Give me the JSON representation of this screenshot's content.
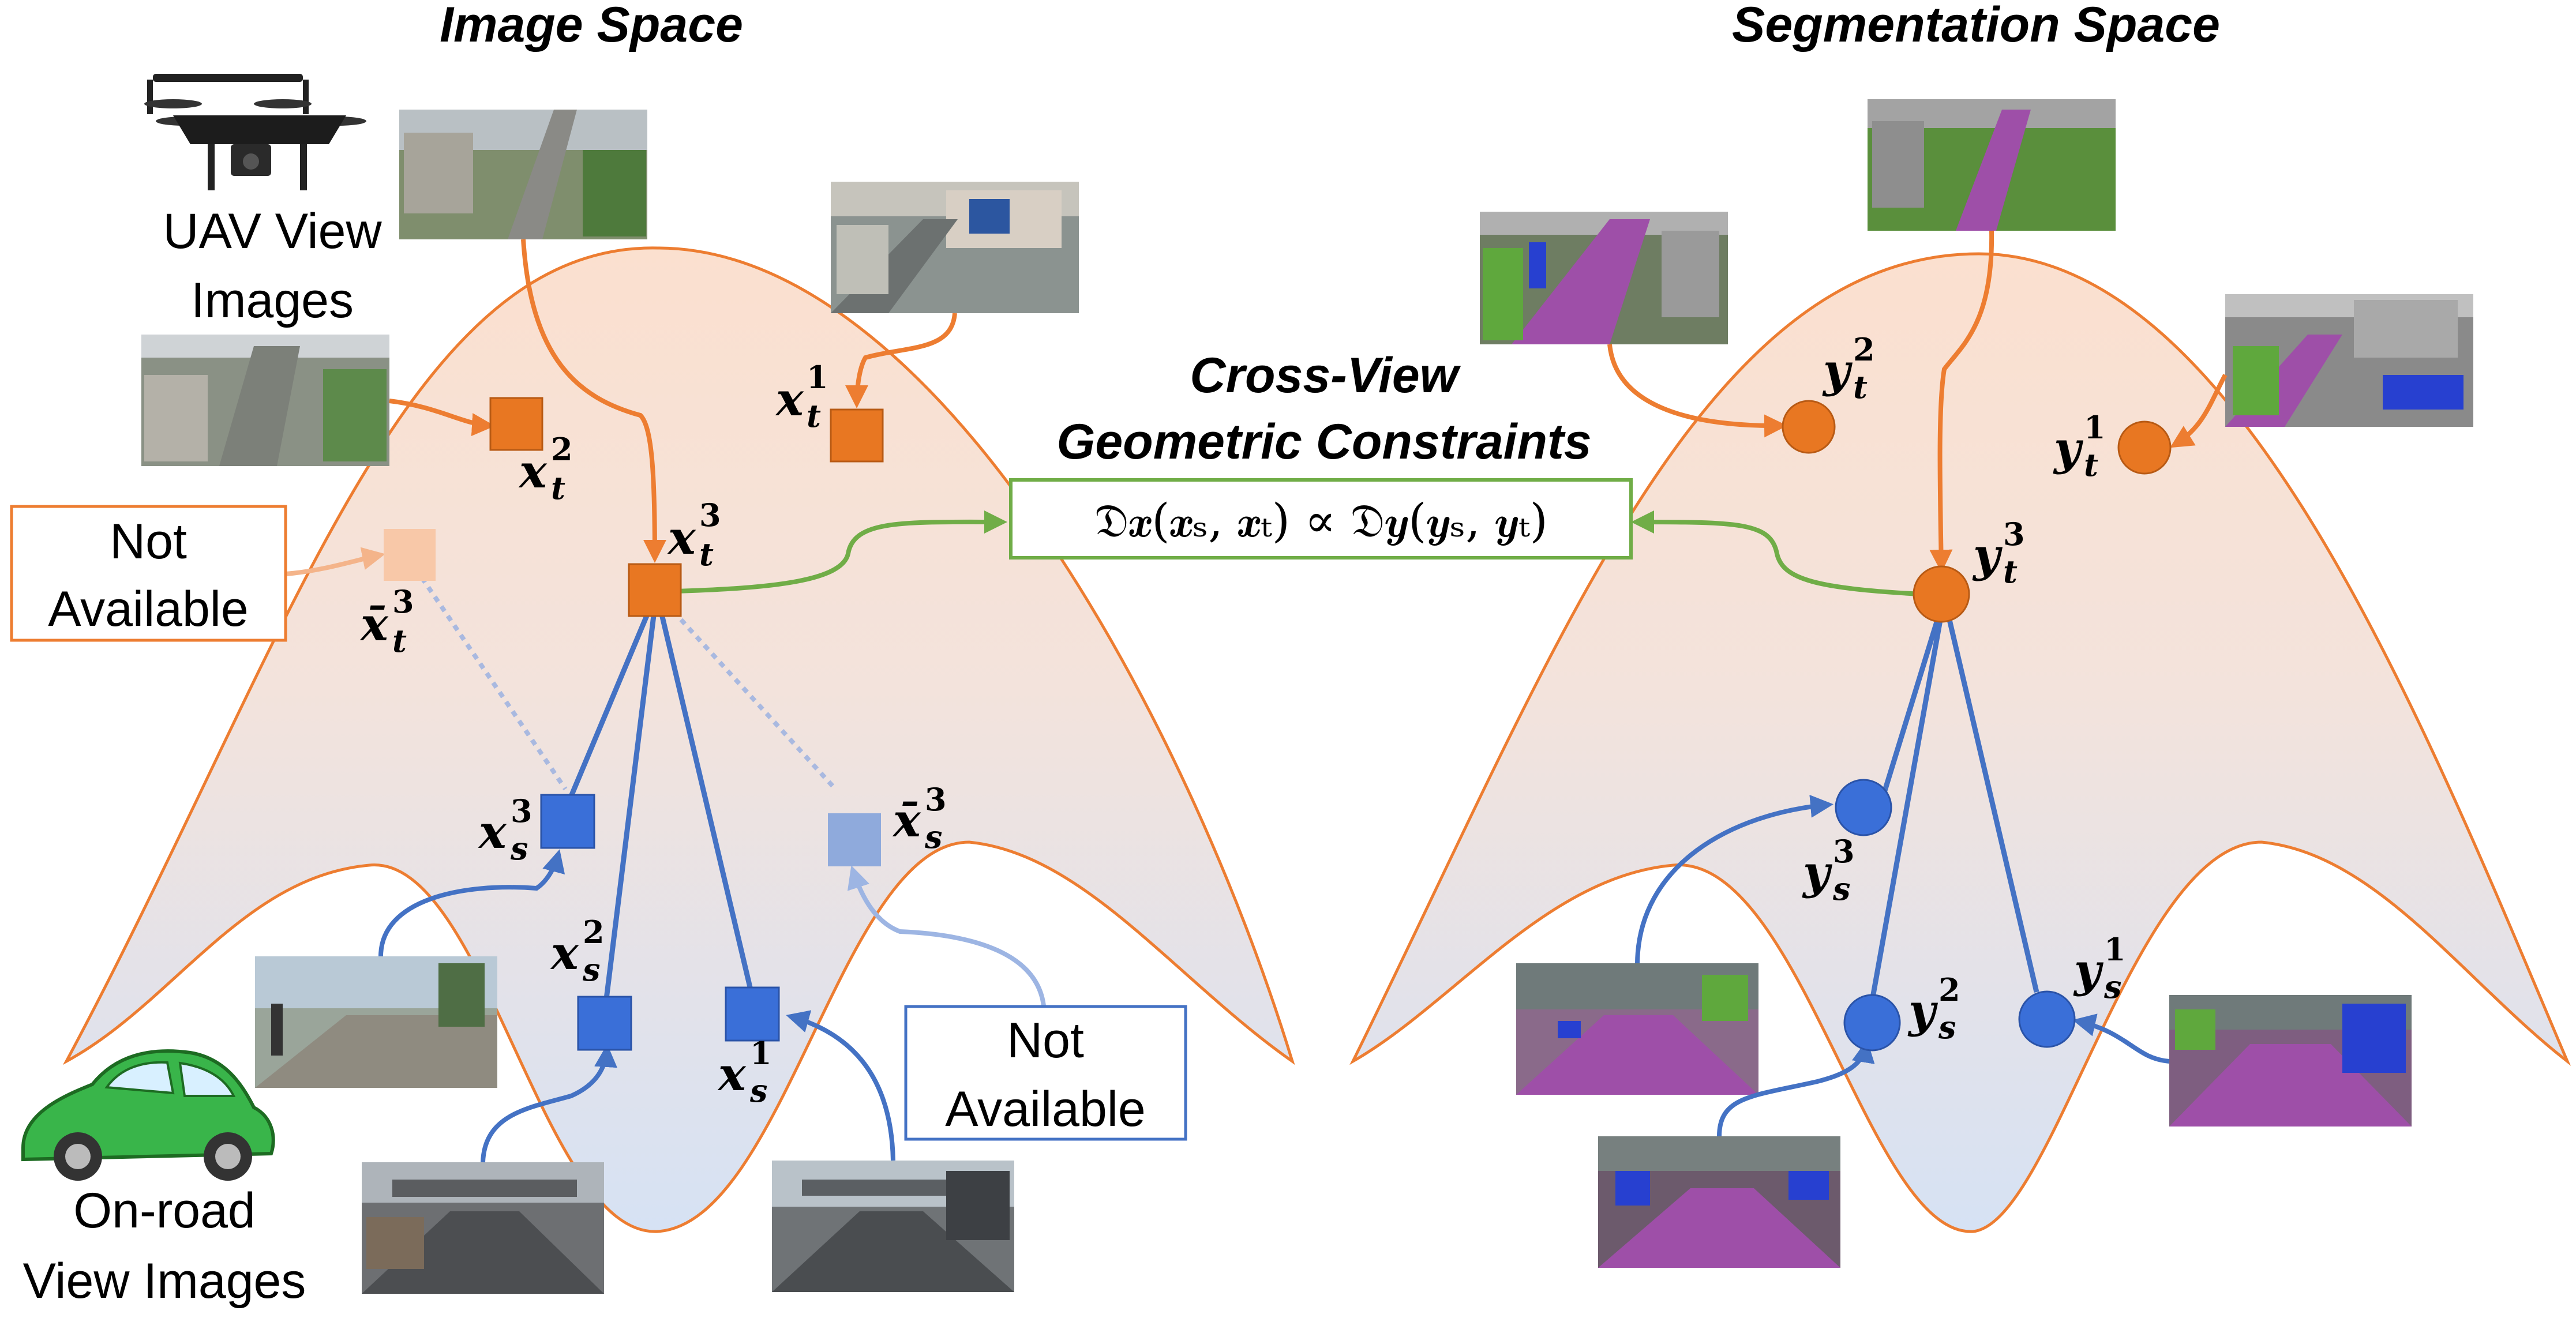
{
  "titles": {
    "image_space": "Image Space",
    "segmentation_space": "Segmentation Space"
  },
  "constraint": {
    "title_line1": "Cross-View",
    "title_line2": "Geometric Constraints",
    "formula": "𝔇𝒙(𝒙ₛ, 𝒙ₜ) ∝ 𝔇𝒚(𝒚ₛ, 𝒚ₜ)"
  },
  "captions": {
    "uav_line1": "UAV View",
    "uav_line2": "Images",
    "onroad_line1": "On-road",
    "onroad_line2": "View Images",
    "na_left_line1": "Not",
    "na_left_line2": "Available",
    "na_right_line1": "Not",
    "na_right_line2": "Available"
  },
  "labels": {
    "x_t1": {
      "base": "x",
      "sub": "t",
      "sup": "1"
    },
    "x_t2": {
      "base": "x",
      "sub": "t",
      "sup": "2"
    },
    "x_t3": {
      "base": "x",
      "sub": "t",
      "sup": "3"
    },
    "xbar_t3": {
      "base": "x̄",
      "sub": "t",
      "sup": "3"
    },
    "x_s1": {
      "base": "x",
      "sub": "s",
      "sup": "1"
    },
    "x_s2": {
      "base": "x",
      "sub": "s",
      "sup": "2"
    },
    "x_s3": {
      "base": "x",
      "sub": "s",
      "sup": "3"
    },
    "xbar_s3": {
      "base": "x̄",
      "sub": "s",
      "sup": "3"
    },
    "y_t1": {
      "base": "y",
      "sub": "t",
      "sup": "1"
    },
    "y_t2": {
      "base": "y",
      "sub": "t",
      "sup": "2"
    },
    "y_t3": {
      "base": "y",
      "sub": "t",
      "sup": "3"
    },
    "y_s1": {
      "base": "y",
      "sub": "s",
      "sup": "1"
    },
    "y_s2": {
      "base": "y",
      "sub": "s",
      "sup": "2"
    },
    "y_s3": {
      "base": "y",
      "sub": "s",
      "sup": "3"
    }
  },
  "colors": {
    "orange": "#ED7D31",
    "orange_node": "#E87722",
    "orange_light": "#F8C8A8",
    "blue": "#4472C4",
    "blue_node": "#3A6FD8",
    "blue_light": "#8FAADC",
    "green": "#70AD47",
    "region_top": "#FCE4D6",
    "region_bottom": "#DAE3F3"
  }
}
